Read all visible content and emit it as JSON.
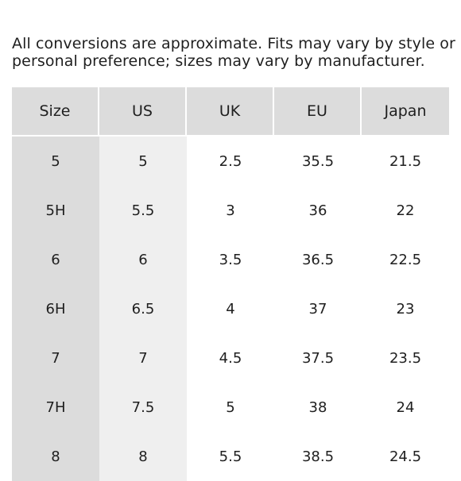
{
  "note": {
    "line1": "All conversions are approximate. Fits may vary by style or",
    "line2": "personal preference; sizes may vary by manufacturer."
  },
  "table": {
    "columns": [
      "Size",
      "US",
      "UK",
      "EU",
      "Japan"
    ],
    "rows": [
      [
        "5",
        "5",
        "2.5",
        "35.5",
        "21.5"
      ],
      [
        "5H",
        "5.5",
        "3",
        "36",
        "22"
      ],
      [
        "6",
        "6",
        "3.5",
        "36.5",
        "22.5"
      ],
      [
        "6H",
        "6.5",
        "4",
        "37",
        "23"
      ],
      [
        "7",
        "7",
        "4.5",
        "37.5",
        "23.5"
      ],
      [
        "7H",
        "7.5",
        "5",
        "38",
        "24"
      ],
      [
        "8",
        "8",
        "5.5",
        "38.5",
        "24.5"
      ]
    ]
  }
}
